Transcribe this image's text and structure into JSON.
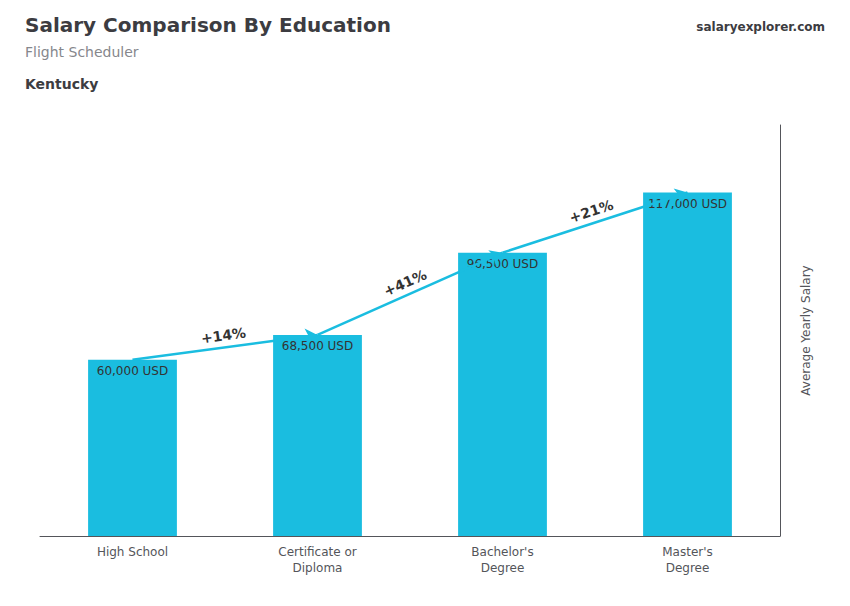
{
  "chart_data": {
    "type": "bar",
    "title": "Salary Comparison By Education",
    "subtitle": "Flight Scheduler",
    "annotations": [
      "Kentucky",
      "salaryexplorer.com"
    ],
    "categories": [
      "High School",
      "Certificate or\nDiploma",
      "Bachelor's\nDegree",
      "Master's\nDegree"
    ],
    "values": [
      60000,
      68500,
      96500,
      117000
    ],
    "value_labels": [
      "60,000 USD",
      "68,500 USD",
      "96,500 USD",
      "117,000 USD"
    ],
    "data_labels": true,
    "pct_changes": [
      {
        "value": 14,
        "label": "+14%"
      },
      {
        "value": 41,
        "label": "+41%"
      },
      {
        "value": 21,
        "label": "+21%"
      }
    ],
    "color": "#1abde0",
    "ylabel": "Average Yearly Salary",
    "ylim": [
      0,
      140000
    ],
    "tick_labels": "x",
    "grid": false
  }
}
